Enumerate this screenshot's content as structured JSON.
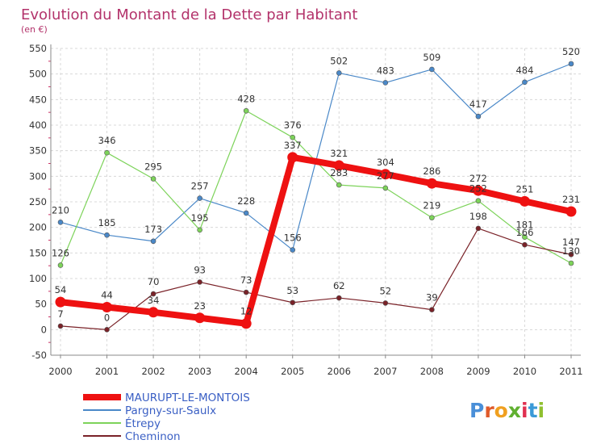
{
  "title": "Evolution du Montant de la Dette par Habitant",
  "subtitle": "(en €)",
  "logo": {
    "text": "Proxiti",
    "colors": [
      "#4a8fd8",
      "#e05a2a",
      "#f0a020",
      "#60b030",
      "#e03050",
      "#3a9ad8",
      "#90c030"
    ]
  },
  "chart_data": {
    "type": "line",
    "x": [
      "2000",
      "2001",
      "2002",
      "2003",
      "2004",
      "2005",
      "2006",
      "2007",
      "2008",
      "2009",
      "2010",
      "2011"
    ],
    "ylim": [
      -50,
      550
    ],
    "yticks": [
      "-50",
      "0",
      "50",
      "100",
      "150",
      "200",
      "250",
      "300",
      "350",
      "400",
      "450",
      "500",
      "550"
    ],
    "grid": true,
    "legend_position": "bottom-left",
    "series": [
      {
        "name": "Pargny-sur-Saulx",
        "color": "#4a88c8",
        "width": 1.2,
        "values": [
          210,
          185,
          173,
          257,
          228,
          156,
          502,
          483,
          509,
          417,
          484,
          520
        ],
        "labels": [
          "210",
          "185",
          "173",
          "257",
          "228",
          "156",
          "502",
          "483",
          "509",
          "417",
          "484",
          "520"
        ]
      },
      {
        "name": "Étrepy",
        "color": "#7dd35a",
        "width": 1.2,
        "values": [
          126,
          346,
          295,
          195,
          428,
          376,
          283,
          277,
          219,
          252,
          181,
          130
        ],
        "labels": [
          "126",
          "346",
          "295",
          "195",
          "428",
          "376",
          "283",
          "277",
          "219",
          "252",
          "181",
          "130"
        ]
      },
      {
        "name": "Cheminon",
        "color": "#7a2228",
        "width": 1.2,
        "values": [
          7,
          0,
          70,
          93,
          73,
          53,
          62,
          52,
          39,
          198,
          166,
          147
        ],
        "labels": [
          "7",
          "0",
          "70",
          "93",
          "73",
          "53",
          "62",
          "52",
          "39",
          "198",
          "166",
          "147"
        ]
      },
      {
        "name": "MAURUPT-LE-MONTOIS",
        "color": "#ee1111",
        "width": 8,
        "values": [
          54,
          44,
          34,
          23,
          12,
          337,
          321,
          304,
          286,
          272,
          251,
          231
        ],
        "labels": [
          "54",
          "44",
          "34",
          "23",
          "12",
          "337",
          "321",
          "304",
          "286",
          "272",
          "251",
          "231"
        ]
      }
    ],
    "legend": [
      {
        "name": "MAURUPT-LE-MONTOIS",
        "color": "#ee1111",
        "width": 8
      },
      {
        "name": "Pargny-sur-Saulx",
        "color": "#4a88c8",
        "width": 2
      },
      {
        "name": "Étrepy",
        "color": "#7dd35a",
        "width": 2
      },
      {
        "name": "Cheminon",
        "color": "#7a2228",
        "width": 2
      }
    ]
  }
}
